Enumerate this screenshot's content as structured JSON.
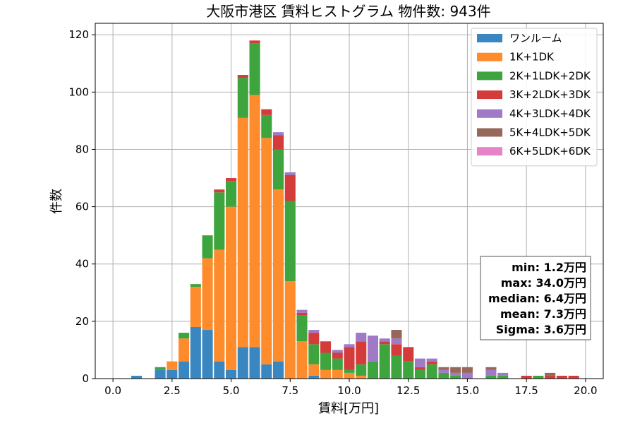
{
  "chart_data": {
    "type": "bar",
    "stacked": true,
    "title": "大阪市港区 賃料ヒストグラム  物件数: 943件",
    "xlabel": "賃料[万円]",
    "ylabel": "件数",
    "xlim": [
      -0.75,
      20.75
    ],
    "ylim": [
      0,
      124
    ],
    "xticks": [
      0,
      2.5,
      5,
      7.5,
      10,
      12.5,
      15,
      17.5,
      20
    ],
    "xtick_labels": [
      "0.0",
      "2.5",
      "5.0",
      "7.5",
      "10.0",
      "12.5",
      "15.0",
      "17.5",
      "20.0"
    ],
    "yticks": [
      0,
      20,
      40,
      60,
      80,
      100,
      120
    ],
    "ytick_labels": [
      "0",
      "20",
      "40",
      "60",
      "80",
      "100",
      "120"
    ],
    "grid": true,
    "legend_position": "top-right",
    "bin_width": 0.5,
    "x": [
      1.0,
      2.0,
      2.5,
      3.0,
      3.5,
      4.0,
      4.5,
      5.0,
      5.5,
      6.0,
      6.5,
      7.0,
      7.5,
      8.0,
      8.5,
      9.0,
      9.5,
      10.0,
      10.5,
      11.0,
      11.5,
      12.0,
      12.5,
      13.0,
      13.5,
      14.0,
      14.5,
      15.0,
      16.0,
      16.5,
      17.5,
      18.0,
      18.5,
      19.0,
      19.5
    ],
    "series": [
      {
        "name": "ワンルーム",
        "color": "#3a86c0",
        "values": [
          1,
          3,
          3,
          6,
          18,
          17,
          6,
          3,
          11,
          11,
          5,
          6,
          0,
          0,
          1,
          0,
          0,
          0,
          0,
          0,
          0,
          0,
          0,
          0,
          0,
          0,
          0,
          0,
          0,
          0,
          0,
          0,
          0,
          0,
          0
        ]
      },
      {
        "name": "1K+1DK",
        "color": "#fe8c2c",
        "values": [
          0,
          0,
          3,
          8,
          14,
          25,
          39,
          57,
          80,
          88,
          79,
          60,
          34,
          13,
          4,
          3,
          3,
          2,
          1,
          0,
          0,
          0,
          0,
          0,
          0,
          0,
          0,
          0,
          0,
          0,
          0,
          0,
          0,
          0,
          0
        ]
      },
      {
        "name": "2K+1LDK+2DK",
        "color": "#3ea43e",
        "values": [
          0,
          1,
          0,
          2,
          1,
          8,
          20,
          9,
          14,
          18,
          8,
          14,
          28,
          9,
          7,
          6,
          4,
          1,
          4,
          6,
          12,
          8,
          6,
          3,
          5,
          2,
          1,
          0,
          1,
          1,
          0,
          1,
          0,
          0,
          0
        ]
      },
      {
        "name": "3K+2LDK+3DK",
        "color": "#d43b3b",
        "values": [
          0,
          0,
          0,
          0,
          0,
          0,
          1,
          1,
          1,
          1,
          2,
          5,
          9,
          1,
          4,
          4,
          2,
          8,
          8,
          0,
          1,
          4,
          5,
          1,
          1,
          0,
          0,
          0,
          0,
          0,
          1,
          0,
          1,
          1,
          1
        ]
      },
      {
        "name": "4K+3LDK+4DK",
        "color": "#a07ac6",
        "values": [
          0,
          0,
          0,
          0,
          0,
          0,
          0,
          0,
          0,
          0,
          0,
          1,
          1,
          1,
          1,
          0,
          1,
          1,
          3,
          9,
          1,
          2,
          0,
          3,
          1,
          1,
          1,
          2,
          2,
          1,
          0,
          0,
          0,
          0,
          0
        ]
      },
      {
        "name": "5K+4LDK+5DK",
        "color": "#96675a",
        "values": [
          0,
          0,
          0,
          0,
          0,
          0,
          0,
          0,
          0,
          0,
          0,
          0,
          0,
          0,
          0,
          0,
          0,
          0,
          0,
          0,
          0,
          3,
          0,
          0,
          0,
          1,
          2,
          2,
          1,
          0,
          0,
          0,
          1,
          0,
          0
        ]
      },
      {
        "name": "6K+5LDK+6DK",
        "color": "#e783c7",
        "values": [
          0,
          0,
          0,
          0,
          0,
          0,
          0,
          0,
          0,
          0,
          0,
          0,
          0,
          0,
          0,
          0,
          0,
          0,
          0,
          0,
          0,
          0,
          0,
          0,
          0,
          0,
          0,
          0,
          0,
          0,
          0,
          0,
          0,
          0,
          0
        ]
      }
    ],
    "stats_box": {
      "lines": [
        "min: 1.2万円",
        "max: 34.0万円",
        "median: 6.4万円",
        "mean: 7.3万円",
        "Sigma: 3.6万円"
      ]
    }
  }
}
